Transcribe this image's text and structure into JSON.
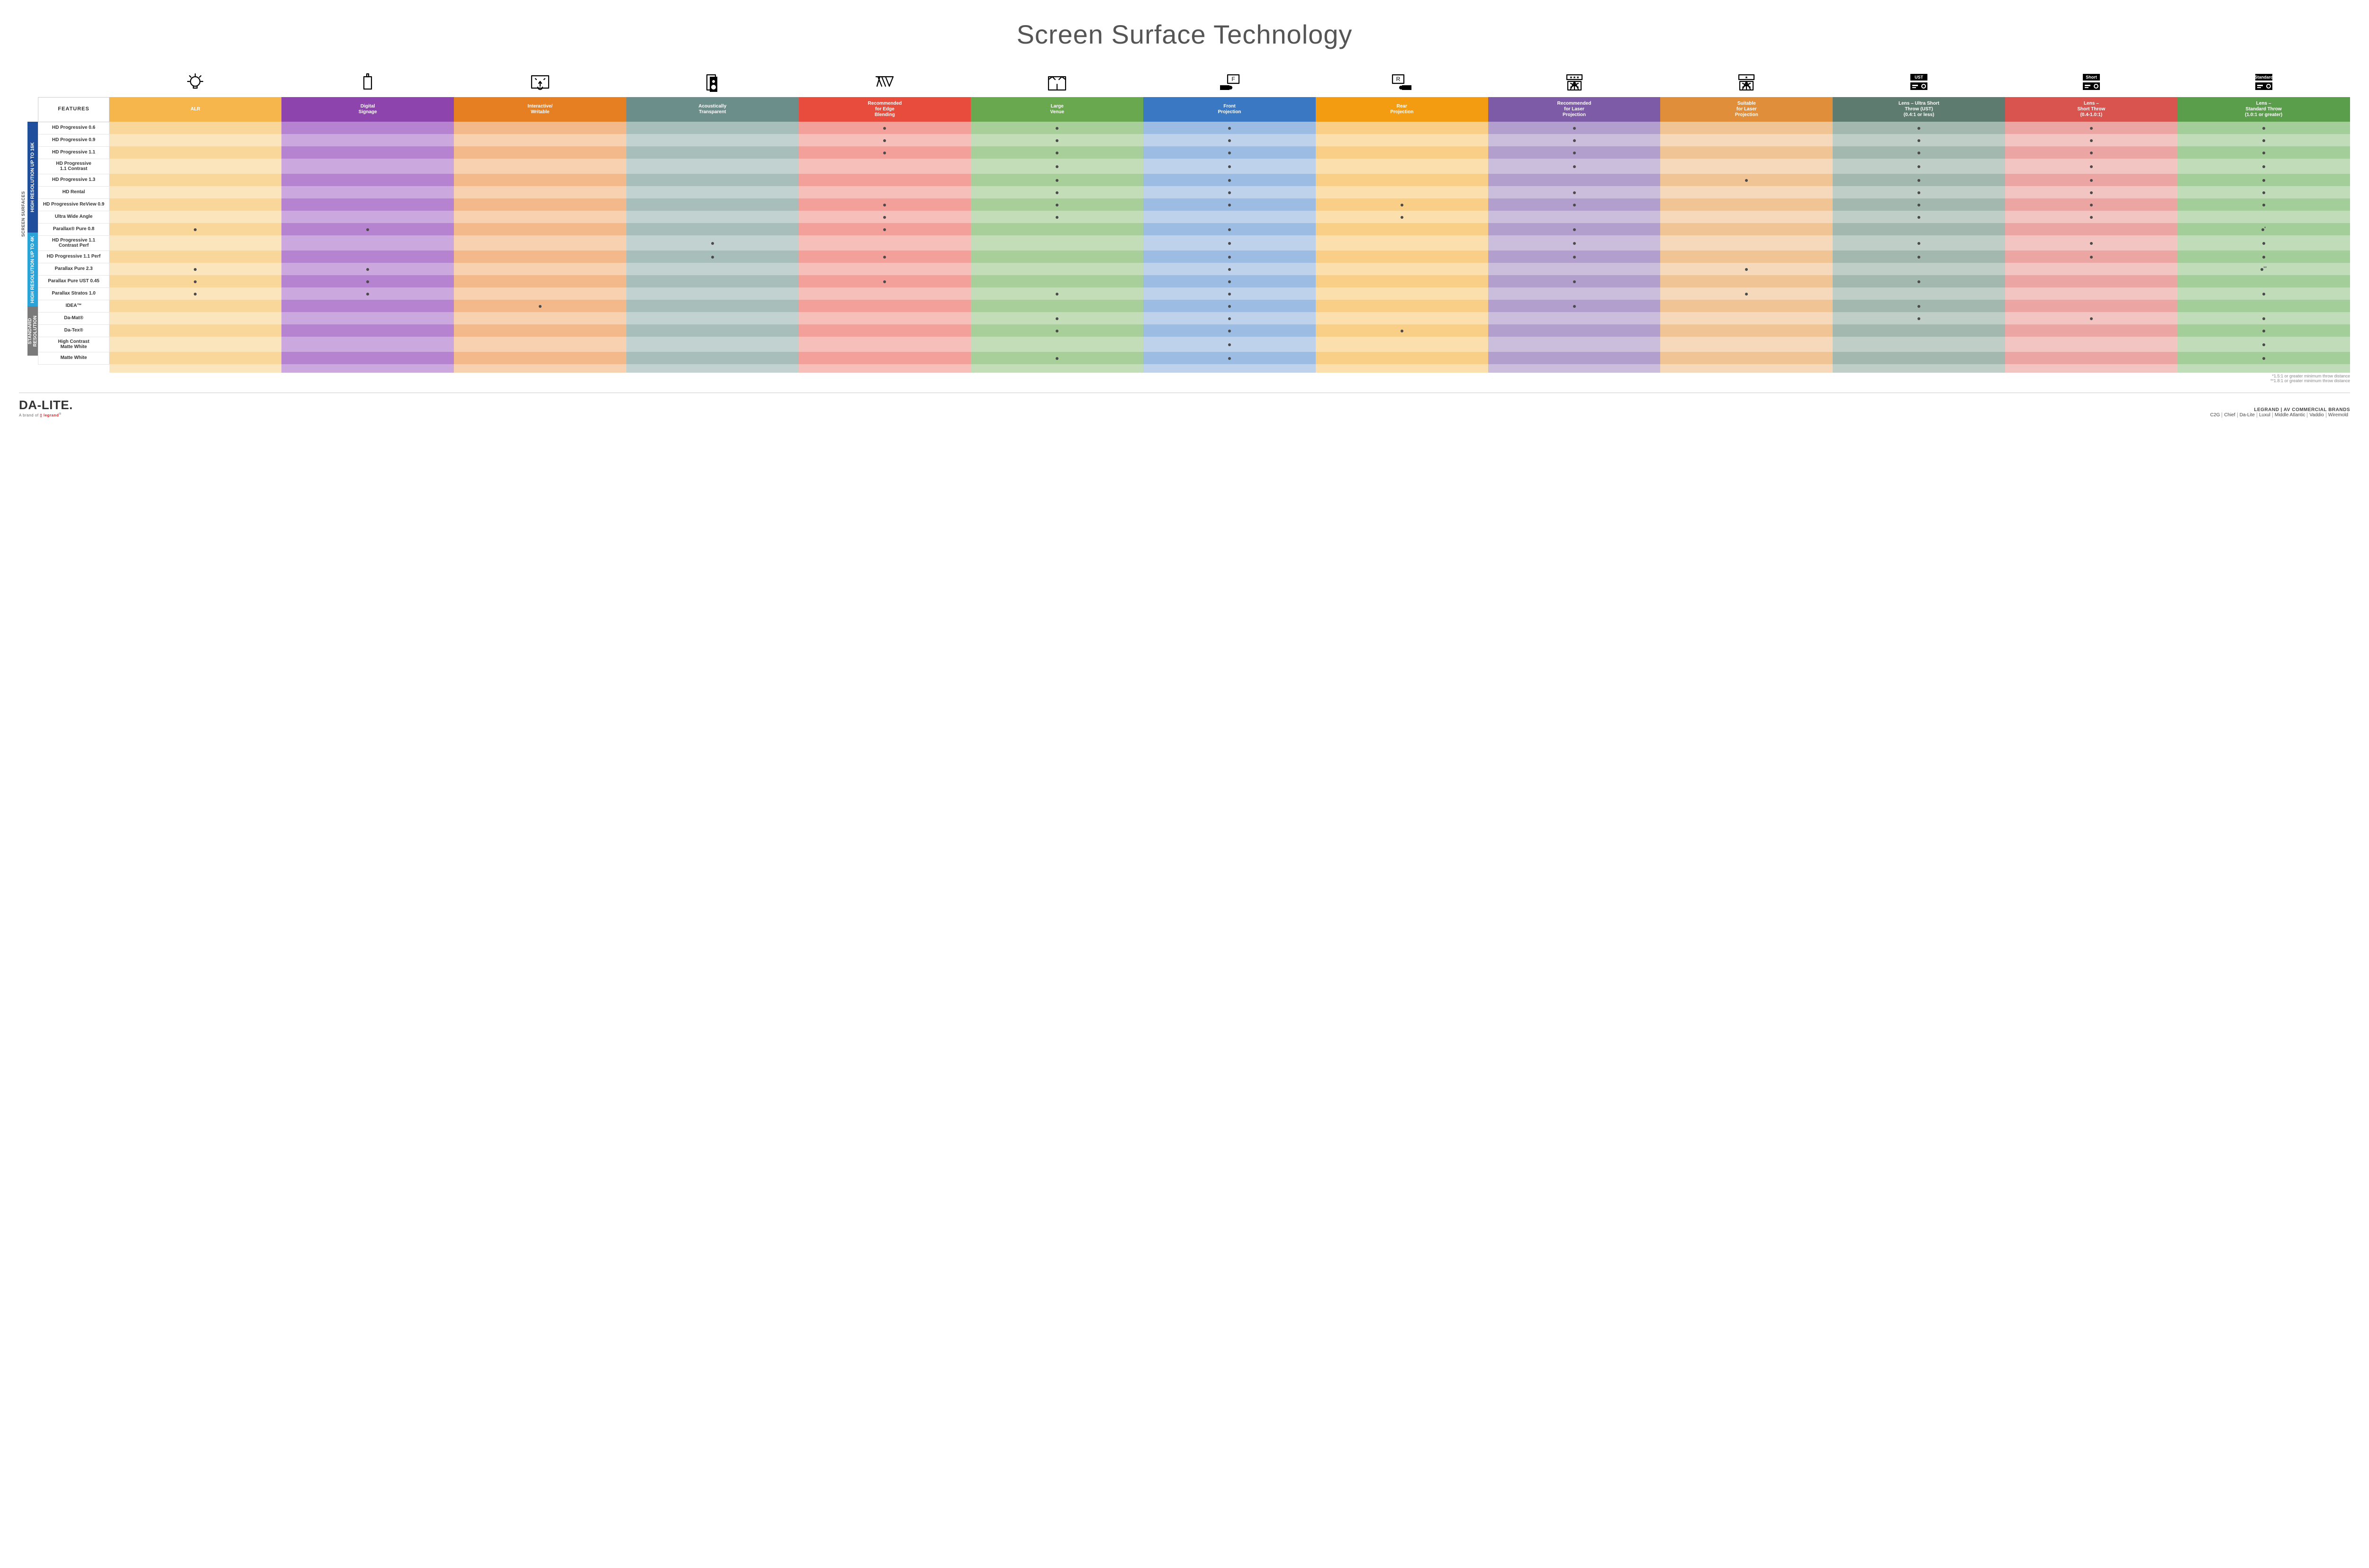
{
  "title": "Screen Surface Technology",
  "colors": {
    "columns": {
      "alr": {
        "base": "#f6b64b",
        "alt": "#f9d79a",
        "altB": "#fbe5bd"
      },
      "signage": {
        "base": "#8e44ad",
        "alt": "#b583cf",
        "altB": "#cba8de"
      },
      "interactive": {
        "base": "#e67e22",
        "alt": "#f3b98a",
        "altB": "#f7d1b0"
      },
      "acoustic": {
        "base": "#6b8e8a",
        "alt": "#a7bebb",
        "altB": "#c2d2d0"
      },
      "edge": {
        "base": "#e74c3c",
        "alt": "#f2a099",
        "altB": "#f6bfba"
      },
      "venue": {
        "base": "#6aa84f",
        "alt": "#a8cf9a",
        "altB": "#c3ddb9"
      },
      "front": {
        "base": "#3b78c3",
        "alt": "#9dbce3",
        "altB": "#bed2ec"
      },
      "rear": {
        "base": "#f39c12",
        "alt": "#f9ce86",
        "altB": "#fbdfad"
      },
      "reclaser": {
        "base": "#7d5ba6",
        "alt": "#b39fcd",
        "altB": "#cbbedd"
      },
      "suitlaser": {
        "base": "#e08e3a",
        "alt": "#f0c495",
        "altB": "#f5d9ba"
      },
      "ust": {
        "base": "#5d7b6f",
        "alt": "#a3b8af",
        "altB": "#c0cec8"
      },
      "short": {
        "base": "#d9534f",
        "alt": "#eba6a3",
        "altB": "#f2c4c2"
      },
      "standard": {
        "base": "#5a9e4b",
        "alt": "#a3cd99",
        "altB": "#c0dcb9"
      }
    },
    "groups": {
      "hi16k": "#1f4e9c",
      "hi4k": "#2aa3d8",
      "std": "#7a7a7a"
    }
  },
  "sideLabelOuter": "SCREEN SURFACES",
  "groups": [
    {
      "key": "hi16k",
      "label": "HIGH RESOLUTION UP TO 16K"
    },
    {
      "key": "hi4k",
      "label": "HIGH RESOLUTION UP TO 4K"
    },
    {
      "key": "std",
      "label": "STANDARD\nRESOLUTION"
    }
  ],
  "columns": [
    {
      "key": "alr",
      "label": "ALR",
      "icon": "bulb"
    },
    {
      "key": "signage",
      "label": "Digital\nSignage",
      "icon": "signage"
    },
    {
      "key": "interactive",
      "label": "Interactive/\nWritable",
      "icon": "touch"
    },
    {
      "key": "acoustic",
      "label": "Acoustically\nTransparent",
      "icon": "speaker"
    },
    {
      "key": "edge",
      "label": "Recommended\nfor Edge\nBlending",
      "icon": "blend"
    },
    {
      "key": "venue",
      "label": "Large\nVenue",
      "icon": "stage"
    },
    {
      "key": "front",
      "label": "Front\nProjection",
      "icon": "front"
    },
    {
      "key": "rear",
      "label": "Rear\nProjection",
      "icon": "rear"
    },
    {
      "key": "reclaser",
      "label": "Recommended\nfor Laser\nProjection",
      "icon": "laser3"
    },
    {
      "key": "suitlaser",
      "label": "Suitable\nfor Laser\nProjection",
      "icon": "laser1"
    },
    {
      "key": "ust",
      "label": "Lens – Ultra Short\nThrow (UST)\n(0.4:1 or less)",
      "icon": "proj",
      "tag": "UST"
    },
    {
      "key": "short",
      "label": "Lens –\nShort Throw\n(0.4-1.0:1)",
      "icon": "proj",
      "tag": "Short"
    },
    {
      "key": "standard",
      "label": "Lens –\nStandard Throw\n(1.0:1 or greater)",
      "icon": "proj",
      "tag": "Standard"
    }
  ],
  "featuresHeader": "FEATURES",
  "rows": [
    {
      "group": "hi16k",
      "name": "HD Progressive 0.6",
      "cells": {
        "edge": "●",
        "venue": "●",
        "front": "●",
        "reclaser": "●",
        "ust": "●",
        "short": "●",
        "standard": "●"
      }
    },
    {
      "group": "hi16k",
      "name": "HD Progressive 0.9",
      "cells": {
        "edge": "●",
        "venue": "●",
        "front": "●",
        "reclaser": "●",
        "ust": "●",
        "short": "●",
        "standard": "●"
      }
    },
    {
      "group": "hi16k",
      "name": "HD Progressive 1.1",
      "cells": {
        "edge": "●",
        "venue": "●",
        "front": "●",
        "reclaser": "●",
        "ust": "●",
        "short": "●",
        "standard": "●"
      }
    },
    {
      "group": "hi16k",
      "name": "HD Progressive\n1.1 Contrast",
      "cells": {
        "venue": "●",
        "front": "●",
        "reclaser": "●",
        "ust": "●",
        "short": "●",
        "standard": "●"
      }
    },
    {
      "group": "hi16k",
      "name": "HD Progressive 1.3",
      "cells": {
        "venue": "●",
        "front": "●",
        "suitlaser": "●",
        "ust": "●",
        "short": "●",
        "standard": "●"
      }
    },
    {
      "group": "hi16k",
      "name": "HD Rental",
      "cells": {
        "venue": "●",
        "front": "●",
        "reclaser": "●",
        "ust": "●",
        "short": "●",
        "standard": "●"
      }
    },
    {
      "group": "hi16k",
      "name": "HD Progressive ReView 0.9",
      "cells": {
        "edge": "●",
        "venue": "●",
        "front": "●",
        "rear": "●",
        "reclaser": "●",
        "ust": "●",
        "short": "●",
        "standard": "●"
      }
    },
    {
      "group": "hi16k",
      "name": "Ultra Wide Angle",
      "cells": {
        "edge": "●",
        "venue": "●",
        "rear": "●",
        "ust": "●",
        "short": "●"
      }
    },
    {
      "group": "hi16k",
      "name": "Parallax® Pure 0.8",
      "cells": {
        "alr": "●",
        "signage": "●",
        "edge": "●",
        "front": "●",
        "reclaser": "●",
        "standard": "●*"
      }
    },
    {
      "group": "hi4k",
      "name": "HD Progressive 1.1\nContrast Perf",
      "cells": {
        "acoustic": "●",
        "front": "●",
        "reclaser": "●",
        "ust": "●",
        "short": "●",
        "standard": "●"
      }
    },
    {
      "group": "hi4k",
      "name": "HD Progressive 1.1 Perf",
      "cells": {
        "acoustic": "●",
        "edge": "●",
        "front": "●",
        "reclaser": "●",
        "ust": "●",
        "short": "●",
        "standard": "●"
      }
    },
    {
      "group": "hi4k",
      "name": "Parallax Pure 2.3",
      "cells": {
        "alr": "●",
        "signage": "●",
        "front": "●",
        "suitlaser": "●",
        "standard": "●**"
      }
    },
    {
      "group": "hi4k",
      "name": "Parallax Pure UST 0.45",
      "cells": {
        "alr": "●",
        "signage": "●",
        "edge": "●",
        "front": "●",
        "reclaser": "●",
        "ust": "●"
      }
    },
    {
      "group": "hi4k",
      "name": "Parallax Stratos 1.0",
      "cells": {
        "alr": "●",
        "signage": "●",
        "venue": "●",
        "front": "●",
        "suitlaser": "●",
        "standard": "●"
      }
    },
    {
      "group": "hi4k",
      "name": "IDEA™",
      "cells": {
        "interactive": "●",
        "front": "●",
        "reclaser": "●",
        "ust": "●"
      }
    },
    {
      "group": "std",
      "name": "Da-Mat®",
      "cells": {
        "venue": "●",
        "front": "●",
        "ust": "●",
        "short": "●",
        "standard": "●"
      }
    },
    {
      "group": "std",
      "name": "Da-Tex®",
      "cells": {
        "venue": "●",
        "front": "●",
        "rear": "●",
        "standard": "●"
      }
    },
    {
      "group": "std",
      "name": "High Contrast\nMatte White",
      "cells": {
        "front": "●",
        "standard": "●"
      }
    },
    {
      "group": "std",
      "name": "Matte White",
      "cells": {
        "venue": "●",
        "front": "●",
        "standard": "●"
      }
    }
  ],
  "footnotes": [
    "*1.5:1 or greater minimum throw distance",
    "**1.8:1 or greater minimum throw distance"
  ],
  "footer": {
    "logo": "DA-LITE.",
    "logoSub": "A brand of ",
    "logoSubBrand": "legrand",
    "brandsTitle": "LEGRAND | AV COMMERCIAL BRANDS",
    "brands": [
      "C2G",
      "Chief",
      "Da-Lite",
      "Luxul",
      "Middle Atlantic",
      "Vaddio",
      "Wiremold"
    ]
  }
}
